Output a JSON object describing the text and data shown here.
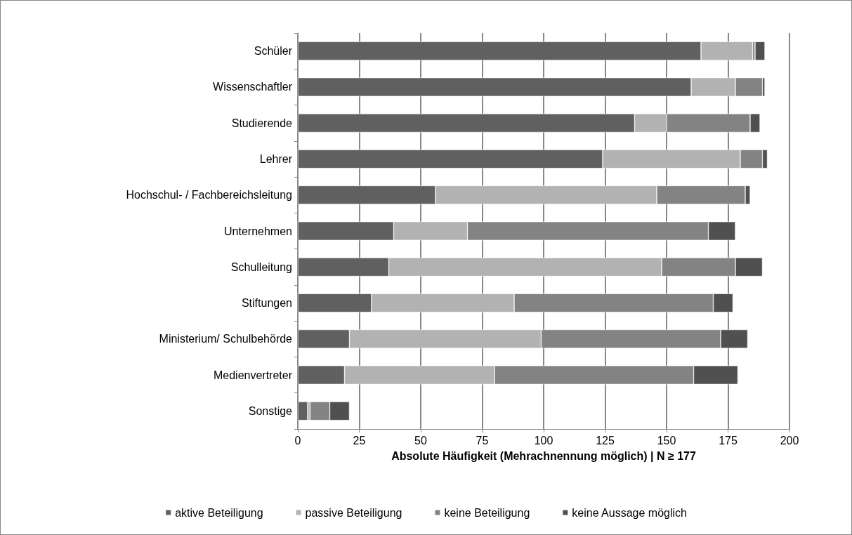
{
  "chart_data": {
    "type": "bar",
    "orientation": "horizontal",
    "stacked": true,
    "xlabel": "Absolute Häufigkeit (Mehrachnennung möglich) | N ≥ 177",
    "categories": [
      "Schüler",
      "Wissenschaftler",
      "Studierende",
      "Lehrer",
      "Hochschul- / Fachbereichsleitung",
      "Unternehmen",
      "Schulleitung",
      "Stiftungen",
      "Ministerium/ Schulbehörde",
      "Medienvertreter",
      "Sonstige"
    ],
    "series": [
      {
        "name": "aktive Beteiligung",
        "color": "#606060",
        "values": [
          164,
          160,
          137,
          124,
          56,
          39,
          37,
          30,
          21,
          19,
          4
        ]
      },
      {
        "name": "passive Beteiligung",
        "color": "#b2b2b2",
        "values": [
          21,
          18,
          13,
          56,
          90,
          30,
          111,
          58,
          78,
          61,
          1
        ]
      },
      {
        "name": "keine Beteiligung",
        "color": "#838383",
        "values": [
          1,
          11,
          34,
          9,
          36,
          98,
          30,
          81,
          73,
          81,
          8
        ]
      },
      {
        "name": "keine Aussage möglich",
        "color": "#505050",
        "values": [
          4,
          1,
          4,
          2,
          2,
          11,
          11,
          8,
          11,
          18,
          8
        ]
      }
    ],
    "xlim": [
      0,
      200
    ],
    "xticks": [
      0,
      25,
      50,
      75,
      100,
      125,
      150,
      175,
      200
    ],
    "grid": "x",
    "legend": "bottom"
  }
}
